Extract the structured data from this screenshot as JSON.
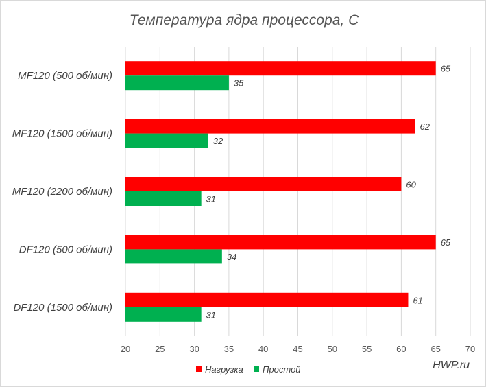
{
  "chart_data": {
    "type": "bar",
    "orientation": "horizontal",
    "title": "Температура ядра процессора, С",
    "categories": [
      "MF120 (500 об/мин)",
      "MF120 (1500 об/мин)",
      "MF120 (2200 об/мин)",
      "DF120 (500 об/мин)",
      "DF120 (1500 об/мин)"
    ],
    "series": [
      {
        "name": "Нагрузка",
        "color": "#ff0000",
        "values": [
          65,
          62,
          60,
          65,
          61
        ]
      },
      {
        "name": "Простой",
        "color": "#00b050",
        "values": [
          35,
          32,
          31,
          34,
          31
        ]
      }
    ],
    "xlim": [
      20,
      70
    ],
    "xticks": [
      "20",
      "25",
      "30",
      "35",
      "40",
      "45",
      "50",
      "55",
      "60",
      "65",
      "70"
    ],
    "grid": "vertical",
    "legend_position": "bottom"
  },
  "watermark": "HWP.ru"
}
